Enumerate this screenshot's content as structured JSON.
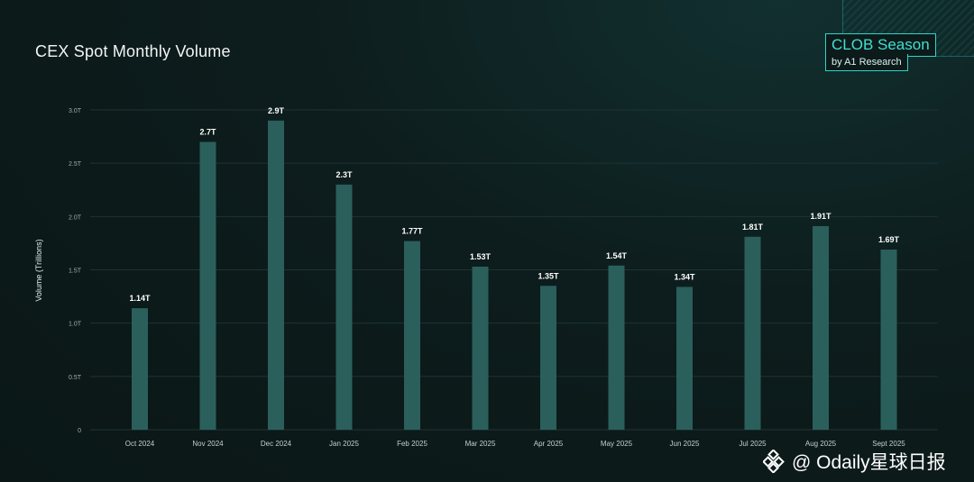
{
  "header": {
    "title": "CEX Spot Monthly Volume",
    "brand": "CLOB Season",
    "brand_sub": "by A1 Research"
  },
  "watermark": {
    "text": "@ Odaily星球日报"
  },
  "colors": {
    "bar": "#2a5f5c",
    "grid": "#1f3333",
    "text": "#ffffff",
    "axis_text": "#9fb0b0",
    "accent": "#2fd4c8"
  },
  "chart_data": {
    "type": "bar",
    "title": "CEX Spot Monthly Volume",
    "xlabel": "",
    "ylabel": "Volume (Trillions)",
    "ylim": [
      0,
      3.0
    ],
    "y_ticks": [
      0,
      0.5,
      1.0,
      1.5,
      2.0,
      2.5,
      3.0
    ],
    "y_tick_labels": [
      "0",
      "0.5T",
      "1.0T",
      "1.5T",
      "2.0T",
      "2.5T",
      "3.0T"
    ],
    "grid": true,
    "categories": [
      "Oct 2024",
      "Nov 2024",
      "Dec 2024",
      "Jan 2025",
      "Feb 2025",
      "Mar 2025",
      "Apr 2025",
      "May 2025",
      "Jun 2025",
      "Jul 2025",
      "Aug 2025",
      "Sept 2025"
    ],
    "values": [
      1.14,
      2.7,
      2.9,
      2.3,
      1.77,
      1.53,
      1.35,
      1.54,
      1.34,
      1.81,
      1.91,
      1.69
    ],
    "data_labels": [
      "1.14T",
      "2.7T",
      "2.9T",
      "2.3T",
      "1.77T",
      "1.53T",
      "1.35T",
      "1.54T",
      "1.34T",
      "1.81T",
      "1.91T",
      "1.69T"
    ]
  }
}
